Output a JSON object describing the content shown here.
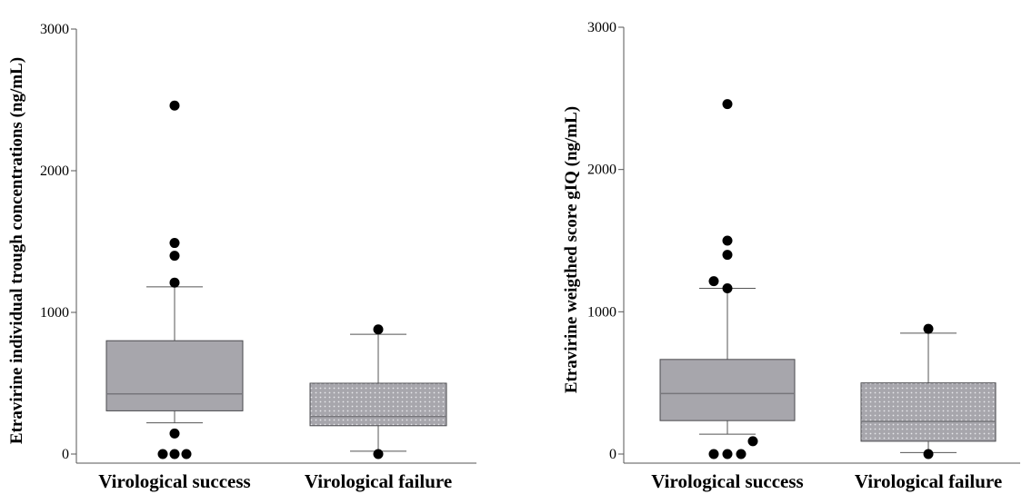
{
  "chart_data": [
    {
      "type": "box",
      "ylabel": "Etravirine individual trough concentrations (ng/mL)",
      "yticks": [
        0,
        1000,
        2000,
        3000
      ],
      "ylim": [
        0,
        3000
      ],
      "categories": [
        "Virological success",
        "Virological failure"
      ],
      "boxes": [
        {
          "name": "Virological success",
          "fill": "solid",
          "whisker_low": 220,
          "q1": 305,
          "median": 425,
          "q3": 800,
          "whisker_high": 1180,
          "outliers": [
            2460,
            1490,
            1400,
            1210,
            145,
            0,
            0,
            0
          ]
        },
        {
          "name": "Virological failure",
          "fill": "dotted",
          "whisker_low": 20,
          "q1": 200,
          "median": 265,
          "q3": 500,
          "whisker_high": 845,
          "outliers": [
            880,
            0
          ]
        }
      ]
    },
    {
      "type": "box",
      "ylabel": "Etravirine weigthed score gIQ (ng/mL)",
      "yticks": [
        0,
        1000,
        2000,
        3000
      ],
      "ylim": [
        0,
        3000
      ],
      "categories": [
        "Virological success",
        "Virological failure"
      ],
      "boxes": [
        {
          "name": "Virological success",
          "fill": "solid",
          "whisker_low": 140,
          "q1": 235,
          "median": 425,
          "q3": 665,
          "whisker_high": 1165,
          "outliers": [
            2460,
            1500,
            1400,
            1215,
            1165,
            90,
            0,
            0,
            0
          ]
        },
        {
          "name": "Virological failure",
          "fill": "dotted",
          "whisker_low": 10,
          "q1": 90,
          "median": 230,
          "q3": 500,
          "whisker_high": 850,
          "outliers": [
            880,
            0
          ]
        }
      ]
    }
  ],
  "colors": {
    "box_fill": "#a7a6ac",
    "median_line": "#77767b",
    "axis": "#555555",
    "whisker": "#555555",
    "outlier": "#000000"
  }
}
